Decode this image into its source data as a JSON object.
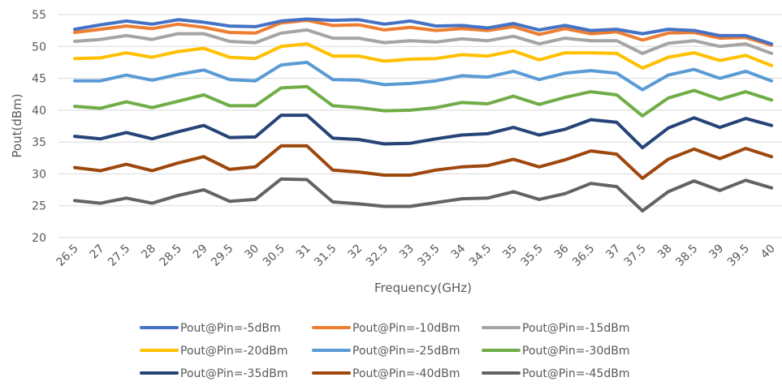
{
  "chart_data": {
    "type": "line",
    "xlabel": "Frequency(GHz)",
    "ylabel": "Pout(dBm)",
    "ylim": [
      20,
      55
    ],
    "yticks": [
      20,
      25,
      30,
      35,
      40,
      45,
      50,
      55
    ],
    "grid": "horizontal",
    "legend_placement": "bottom",
    "categories": [
      "26.5",
      "27",
      "27.5",
      "28",
      "28.5",
      "29",
      "29.5",
      "30",
      "30.5",
      "31",
      "31.5",
      "32",
      "32.5",
      "33",
      "33.5",
      "34",
      "34.5",
      "35",
      "35.5",
      "36",
      "36.5",
      "37",
      "37.5",
      "38",
      "38.5",
      "39",
      "39.5",
      "40"
    ],
    "series": [
      {
        "name": "Pout@Pin=-5dBm",
        "color": "#4472C4",
        "values": [
          52.7,
          53.4,
          54.0,
          53.5,
          54.2,
          53.8,
          53.2,
          53.1,
          54.0,
          54.3,
          54.1,
          54.2,
          53.5,
          54.0,
          53.2,
          53.3,
          52.9,
          53.6,
          52.6,
          53.3,
          52.5,
          52.7,
          52.0,
          52.7,
          52.5,
          51.7,
          51.7,
          50.4
        ]
      },
      {
        "name": "Pout@Pin=-10dBm",
        "color": "#ED7D31",
        "values": [
          52.2,
          52.7,
          53.2,
          52.8,
          53.5,
          53.0,
          52.2,
          52.1,
          53.7,
          54.1,
          53.3,
          53.4,
          52.6,
          53.0,
          52.5,
          52.8,
          52.5,
          53.1,
          51.9,
          52.8,
          52.0,
          52.3,
          51.0,
          52.1,
          52.2,
          51.3,
          51.4,
          50.2
        ]
      },
      {
        "name": "Pout@Pin=-15dBm",
        "color": "#A5A5A5",
        "values": [
          50.8,
          51.1,
          51.7,
          51.1,
          52.0,
          52.0,
          50.8,
          50.6,
          52.1,
          52.6,
          51.3,
          51.3,
          50.6,
          50.9,
          50.7,
          51.2,
          50.9,
          51.6,
          50.4,
          51.3,
          50.9,
          50.9,
          48.9,
          50.5,
          50.9,
          50.0,
          50.4,
          48.9
        ]
      },
      {
        "name": "Pout@Pin=-20dBm",
        "color": "#FFC000",
        "values": [
          48.1,
          48.2,
          49.0,
          48.3,
          49.2,
          49.7,
          48.3,
          48.1,
          50.0,
          50.4,
          48.5,
          48.5,
          47.7,
          48.0,
          48.1,
          48.7,
          48.5,
          49.3,
          47.9,
          49.0,
          49.0,
          48.9,
          46.6,
          48.3,
          49.0,
          47.8,
          48.6,
          47.0
        ]
      },
      {
        "name": "Pout@Pin=-25dBm",
        "color": "#5B9BD5",
        "values": [
          44.6,
          44.6,
          45.5,
          44.7,
          45.6,
          46.3,
          44.8,
          44.6,
          47.1,
          47.5,
          44.8,
          44.7,
          44.0,
          44.2,
          44.6,
          45.4,
          45.2,
          46.1,
          44.8,
          45.8,
          46.2,
          45.8,
          43.2,
          45.5,
          46.4,
          45.0,
          46.1,
          44.6
        ]
      },
      {
        "name": "Pout@Pin=-30dBm",
        "color": "#70AD47",
        "values": [
          40.6,
          40.3,
          41.3,
          40.4,
          41.4,
          42.4,
          40.7,
          40.7,
          43.5,
          43.7,
          40.7,
          40.4,
          39.9,
          40.0,
          40.4,
          41.2,
          41.0,
          42.2,
          40.9,
          42.0,
          42.9,
          42.4,
          39.1,
          41.9,
          43.1,
          41.7,
          42.9,
          41.6
        ]
      },
      {
        "name": "Pout@Pin=-35dBm",
        "color": "#264478",
        "values": [
          35.9,
          35.5,
          36.5,
          35.5,
          36.6,
          37.6,
          35.7,
          35.8,
          39.2,
          39.2,
          35.6,
          35.4,
          34.7,
          34.8,
          35.5,
          36.1,
          36.3,
          37.3,
          36.1,
          37.0,
          38.5,
          38.1,
          34.1,
          37.2,
          38.8,
          37.3,
          38.7,
          37.6
        ]
      },
      {
        "name": "Pout@Pin=-40dBm",
        "color": "#9E480E",
        "values": [
          31.0,
          30.5,
          31.5,
          30.5,
          31.7,
          32.7,
          30.7,
          31.1,
          34.4,
          34.4,
          30.6,
          30.3,
          29.8,
          29.8,
          30.6,
          31.1,
          31.3,
          32.3,
          31.1,
          32.2,
          33.6,
          33.1,
          29.3,
          32.3,
          33.9,
          32.4,
          34.0,
          32.7
        ]
      },
      {
        "name": "Pout@Pin=-45dBm",
        "color": "#636363",
        "values": [
          25.8,
          25.4,
          26.2,
          25.4,
          26.6,
          27.5,
          25.7,
          26.0,
          29.2,
          29.1,
          25.6,
          25.3,
          24.9,
          24.9,
          25.5,
          26.1,
          26.2,
          27.2,
          26.0,
          26.9,
          28.5,
          28.0,
          24.2,
          27.2,
          28.9,
          27.4,
          29.0,
          27.8
        ]
      }
    ]
  }
}
